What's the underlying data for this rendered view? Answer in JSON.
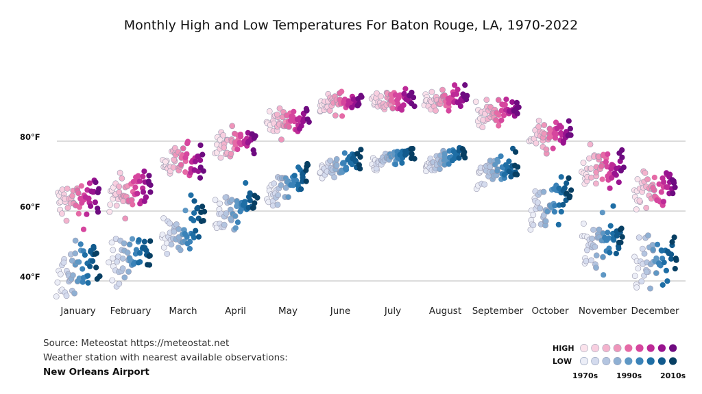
{
  "title": "Monthly High and Low Temperatures For Baton Rouge, LA, 1970-2022",
  "source": {
    "line1": "Source: Meteostat https://meteostat.net",
    "line2": "Weather station with nearest available observations:",
    "line3": "New Orleans Airport"
  },
  "legend": {
    "high_label": "HIGH",
    "low_label": "LOW",
    "decades": [
      "1970s",
      "1990s",
      "2010s"
    ],
    "high_colors": [
      "#fbe3ec",
      "#f8cfe0",
      "#f4b3cd",
      "#ef95ba",
      "#e56aa6",
      "#d6469e",
      "#bd2a97",
      "#98138f",
      "#6e0b80"
    ],
    "low_colors": [
      "#eceef7",
      "#d4dbee",
      "#b4c5e0",
      "#8fb0d3",
      "#5e97c4",
      "#3a82b8",
      "#1e6ea5",
      "#115a8d",
      "#073f63"
    ]
  },
  "chart_data": {
    "type": "scatter",
    "title": "Monthly High and Low Temperatures For Baton Rouge, LA, 1970-2022",
    "xlabel": "",
    "ylabel": "",
    "categories": [
      "January",
      "February",
      "March",
      "April",
      "May",
      "June",
      "July",
      "August",
      "September",
      "October",
      "November",
      "December"
    ],
    "years": [
      1970,
      2022
    ],
    "yticks": [
      "40°F",
      "60°F",
      "80°F"
    ],
    "ytick_values": [
      40,
      60,
      80
    ],
    "ylim": [
      33,
      98
    ],
    "grid": true,
    "series": [
      {
        "name": "HIGH",
        "monthly": [
          {
            "start": 62,
            "end": 64,
            "spread": 3.2
          },
          {
            "start": 63,
            "end": 68,
            "spread": 3.0
          },
          {
            "start": 73,
            "end": 75,
            "spread": 2.4
          },
          {
            "start": 79,
            "end": 80,
            "spread": 2.0
          },
          {
            "start": 85,
            "end": 87,
            "spread": 1.8
          },
          {
            "start": 90,
            "end": 92,
            "spread": 1.5
          },
          {
            "start": 91,
            "end": 92,
            "spread": 1.5
          },
          {
            "start": 91,
            "end": 93,
            "spread": 1.5
          },
          {
            "start": 87,
            "end": 89,
            "spread": 2.0
          },
          {
            "start": 80,
            "end": 82,
            "spread": 2.2
          },
          {
            "start": 71,
            "end": 73,
            "spread": 2.8
          },
          {
            "start": 65,
            "end": 68,
            "spread": 3.0
          }
        ]
      },
      {
        "name": "LOW",
        "monthly": [
          {
            "start": 41,
            "end": 46,
            "spread": 3.6
          },
          {
            "start": 44,
            "end": 49,
            "spread": 3.2
          },
          {
            "start": 52,
            "end": 58,
            "spread": 2.8
          },
          {
            "start": 58,
            "end": 63,
            "spread": 2.2
          },
          {
            "start": 65,
            "end": 71,
            "spread": 2.0
          },
          {
            "start": 71,
            "end": 75,
            "spread": 1.4
          },
          {
            "start": 73,
            "end": 77,
            "spread": 1.2
          },
          {
            "start": 73,
            "end": 77,
            "spread": 1.3
          },
          {
            "start": 70,
            "end": 74,
            "spread": 2.0
          },
          {
            "start": 59,
            "end": 65,
            "spread": 3.0
          },
          {
            "start": 49,
            "end": 54,
            "spread": 3.6
          },
          {
            "start": 43,
            "end": 49,
            "spread": 3.8
          }
        ]
      }
    ]
  }
}
